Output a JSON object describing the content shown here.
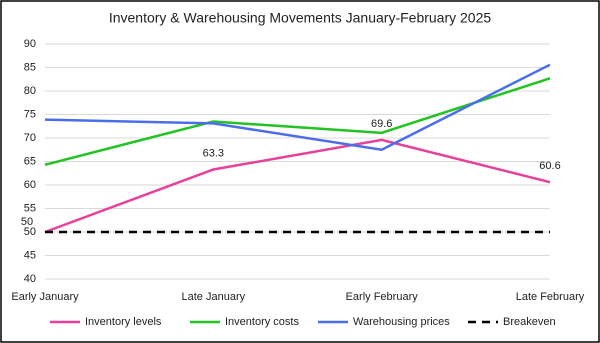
{
  "chart_data": {
    "type": "line",
    "title": "Inventory & Warehousing Movements January-February 2025",
    "categories": [
      "Early January",
      "Late January",
      "Early February",
      "Late February"
    ],
    "series": [
      {
        "name": "Inventory levels",
        "color": "#e8409a",
        "values": [
          50,
          63.3,
          69.6,
          60.6
        ],
        "data_labels": true
      },
      {
        "name": "Inventory costs",
        "color": "#22c322",
        "values": [
          64.3,
          73.5,
          71.1,
          82.7
        ]
      },
      {
        "name": "Warehousing prices",
        "color": "#4a6ee8",
        "values": [
          73.9,
          73.1,
          67.5,
          85.6
        ]
      },
      {
        "name": "Breakeven",
        "color": "#000000",
        "values": [
          50,
          50,
          50,
          50
        ],
        "dashed": true
      }
    ],
    "ylim": [
      40,
      90
    ],
    "yticks": [
      40,
      45,
      50,
      55,
      60,
      65,
      70,
      75,
      80,
      85,
      90
    ],
    "grid": true,
    "legend": "bottom"
  }
}
